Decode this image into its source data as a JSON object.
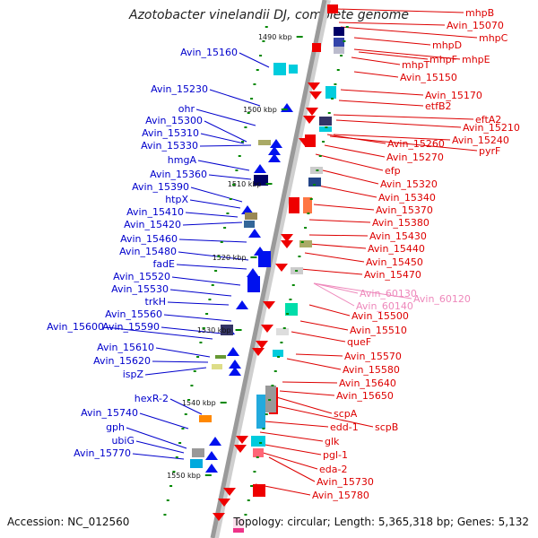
{
  "title": "Azotobacter vinelandii DJ, complete genome",
  "footer": {
    "accession": "Accession: NC_012560",
    "summary": "Topology: circular; Length: 5,365,318 bp; Genes: 5,132"
  },
  "colors": {
    "backbone": "#9a9a9a",
    "left_label": "#0000cc",
    "right_label": "#dd0000",
    "rna_label": "#ee88bb",
    "tick_label": "#111111",
    "tick_mark": "#008800"
  },
  "ticks": [
    "1490 kbp",
    "1500 kbp",
    "1510 kbp",
    "1520 kbp",
    "1530 kbp",
    "1540 kbp",
    "1550 kbp"
  ],
  "left_labels": [
    "Avin_15160",
    "Avin_15230",
    "ohr",
    "Avin_15300",
    "Avin_15310",
    "Avin_15330",
    "hmgA",
    "Avin_15360",
    "Avin_15390",
    "htpX",
    "Avin_15410",
    "Avin_15420",
    "Avin_15460",
    "Avin_15480",
    "fadE",
    "Avin_15520",
    "Avin_15530",
    "trkH",
    "Avin_15560",
    "Avin_15590",
    "Avin_15600",
    "Avin_15610",
    "Avin_15620",
    "ispZ",
    "hexR-2",
    "Avin_15740",
    "gph",
    "ubiG",
    "Avin_15770"
  ],
  "right_labels": [
    "mhpB",
    "Avin_15070",
    "mhpC",
    "mhpD",
    "mhpE",
    "mhpF",
    "mhpT",
    "Avin_15150",
    "Avin_15170",
    "etfB2",
    "eftA2",
    "Avin_15210",
    "Avin_15240",
    "Avin_15260",
    "pyrF",
    "Avin_15270",
    "efp",
    "Avin_15320",
    "Avin_15340",
    "Avin_15370",
    "Avin_15380",
    "Avin_15430",
    "Avin_15440",
    "Avin_15450",
    "Avin_15470",
    "Avin_15500",
    "Avin_15510",
    "queF",
    "Avin_15570",
    "Avin_15580",
    "Avin_15640",
    "Avin_15650",
    "scpA",
    "edd-1",
    "scpB",
    "glk",
    "pgl-1",
    "eda-2",
    "Avin_15730",
    "Avin_15780"
  ],
  "rna_labels": [
    "Avin_60130",
    "Avin_60120",
    "Avin_60140"
  ]
}
